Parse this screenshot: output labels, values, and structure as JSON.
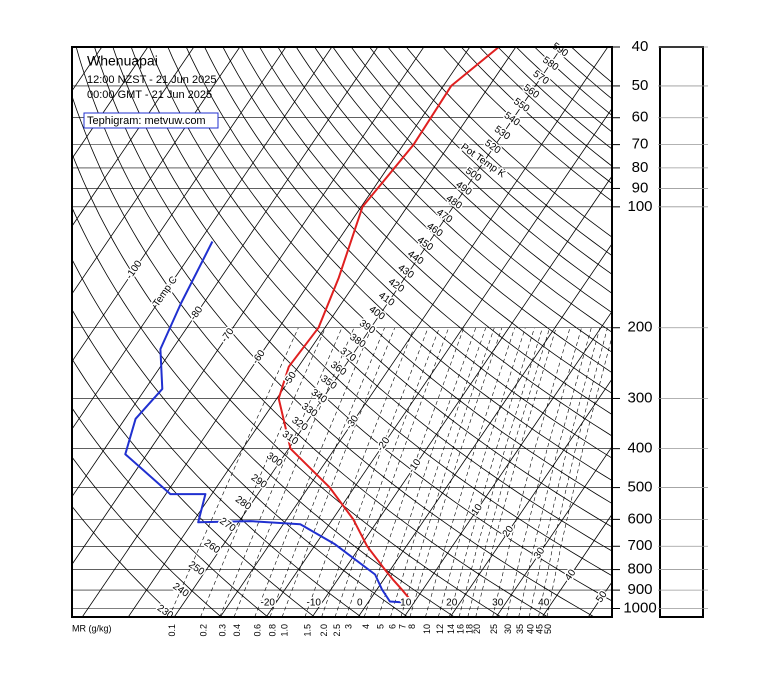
{
  "chart_data": {
    "type": "tephigram",
    "title": "Whenuapai",
    "subtitle": [
      "12:00 NZST - 21 Jun 2025",
      "00:00 GMT - 21 Jun 2025"
    ],
    "source": "Tephigram: metvuw.com",
    "ylim": [
      1050,
      40
    ],
    "yticks": [
      40,
      50,
      60,
      70,
      80,
      90,
      100,
      200,
      300,
      400,
      500,
      600,
      700,
      800,
      900,
      1000
    ],
    "log_scale": true,
    "series": [
      {
        "color": "#e02020",
        "pressure": [
          950,
          900,
          850,
          800,
          700,
          600,
          500,
          400,
          300,
          250,
          200,
          150,
          100,
          70,
          50,
          40
        ],
        "values": [
          8.7,
          5.6,
          2.2,
          -1.2,
          -8.5,
          -15.5,
          -25.3,
          -39.6,
          -49.6,
          -52.1,
          -51.4,
          -54.4,
          -59.7,
          -57.8,
          -58.3,
          -53.7
        ]
      },
      {
        "color": "#2030d0",
        "pressure": [
          966,
          961,
          897,
          823,
          692,
          617,
          606,
          610,
          519,
          519,
          413,
          337,
          284,
          226,
          174,
          122
        ],
        "values": [
          8.0,
          4.6,
          1.1,
          -2.6,
          -15.8,
          -26.3,
          -37.6,
          -48.8,
          -51.4,
          -59.0,
          -74.7,
          -77.7,
          -76.3,
          -82.6,
          -84.9,
          -87.2
        ]
      }
    ],
    "isotherm_title": "Temp C",
    "isotherm_labels": [
      -100,
      -80,
      -70,
      -60,
      -50,
      -40,
      -30,
      -20,
      -10,
      10,
      20,
      30,
      40,
      50
    ],
    "isotherm_labels_bottom": [
      -20,
      -10,
      0,
      10,
      20,
      30,
      40
    ],
    "adiabat_title": "Pot Temp K",
    "adiabat_labels": [
      230,
      240,
      250,
      260,
      270,
      280,
      290,
      300,
      310,
      320,
      330,
      340,
      350,
      360,
      370,
      380,
      390,
      400,
      410,
      420,
      430,
      440,
      450,
      460,
      470,
      480,
      490,
      500,
      520,
      530,
      540,
      550,
      560,
      570,
      580,
      590
    ],
    "mixing_ratio_title": "MR (g/kg)",
    "mixing_ratio_labels": [
      0.1,
      0.2,
      0.3,
      0.4,
      0.6,
      0.8,
      {
        "value": 1,
        "label": "1.0"
      },
      1.5,
      {
        "value": 2,
        "label": "2.0"
      },
      2.5,
      3,
      4,
      5,
      6,
      7,
      8,
      10,
      12,
      14,
      16,
      18,
      20,
      25,
      30,
      35,
      40,
      45,
      50
    ]
  }
}
